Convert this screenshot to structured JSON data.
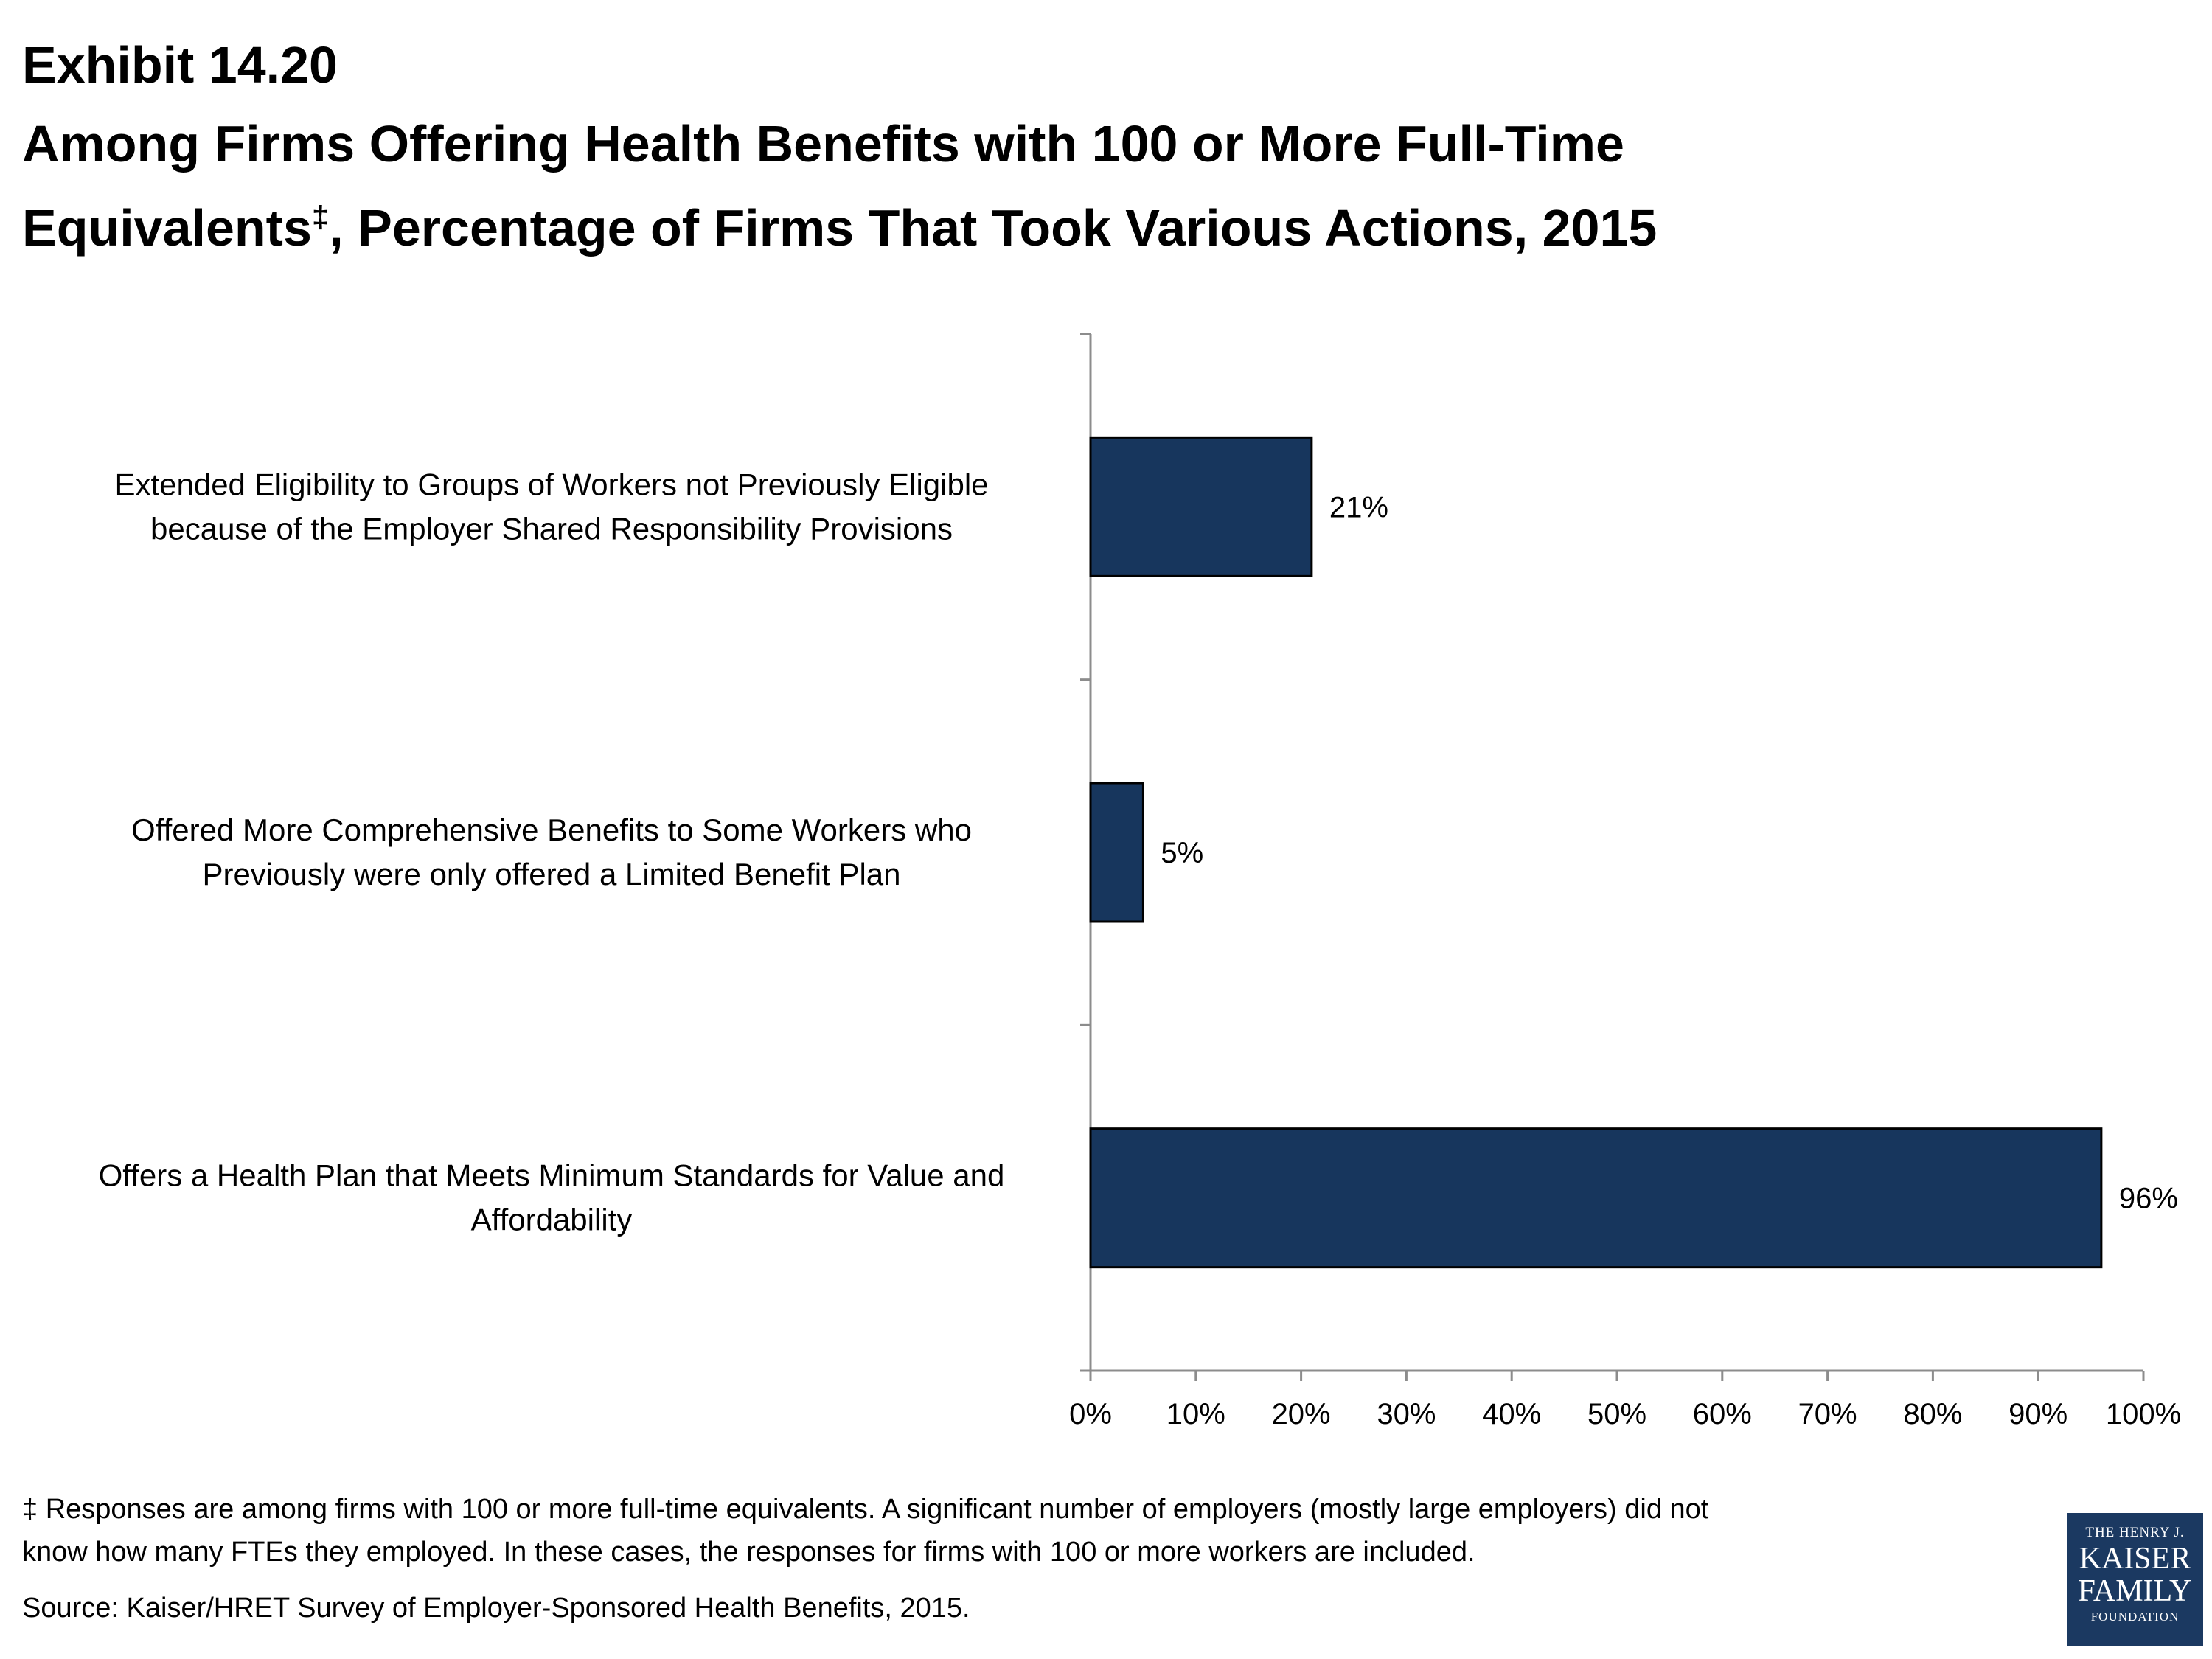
{
  "header": {
    "exhibit": "Exhibit 14.20",
    "title_line1": "Among Firms Offering Health Benefits with 100 or More Full-Time",
    "title_line2_before": "Equivalents",
    "title_mark": "‡",
    "title_line2_after": ", Percentage of Firms That Took Various Actions, 2015"
  },
  "chart_data": {
    "type": "bar",
    "orientation": "horizontal",
    "categories": [
      [
        "Extended Eligibility to Groups of Workers not Previously Eligible",
        "because of the Employer Shared Responsibility Provisions"
      ],
      [
        "Offered More Comprehensive Benefits to Some Workers who",
        "Previously were only offered a Limited Benefit Plan"
      ],
      [
        "Offers a Health Plan that  Meets Minimum Standards for Value and",
        "Affordability"
      ]
    ],
    "values": [
      21,
      5,
      96
    ],
    "data_labels": [
      "21%",
      "5%",
      "96%"
    ],
    "xlim": [
      0,
      100
    ],
    "xticks": [
      "0%",
      "10%",
      "20%",
      "30%",
      "40%",
      "50%",
      "60%",
      "70%",
      "80%",
      "90%",
      "100%"
    ],
    "grid": false,
    "bar_color": "#17365d"
  },
  "footer": {
    "footnote_line1": "‡ Responses are among firms with 100 or more full-time equivalents.  A significant number of employers (mostly large employers) did not",
    "footnote_line2": "know how many FTEs they employed. In these cases, the responses for firms with 100 or more workers are included.",
    "source": "Source: Kaiser/HRET Survey of Employer-Sponsored Health Benefits, 2015."
  },
  "logo": {
    "line1": "THE HENRY J.",
    "line2": "KAISER",
    "line3": "FAMILY",
    "line4": "FOUNDATION",
    "color": "#1b3961"
  }
}
